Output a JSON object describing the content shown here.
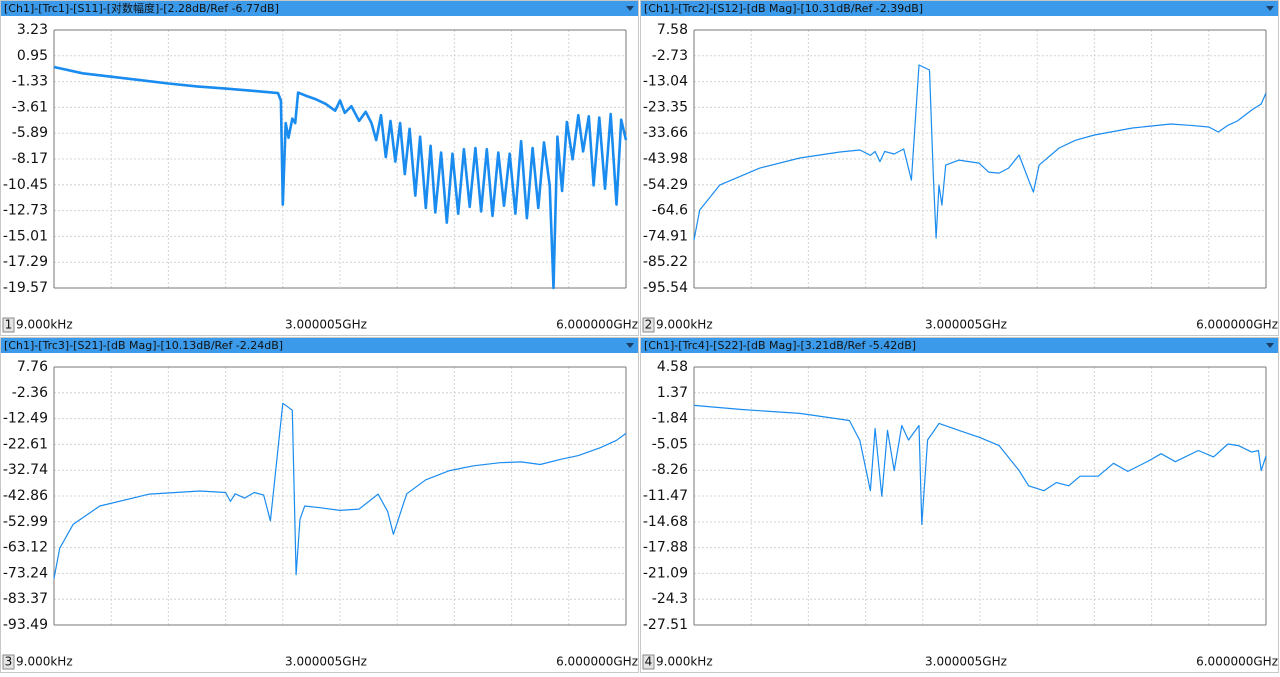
{
  "chart_data": [
    {
      "type": "line",
      "title": "[Ch1]-[Trc1]-[S11]-[对数幅度]-[2.28dB/Ref -6.77dB]",
      "panel": "1",
      "color": "#1a8cf0",
      "width": 2.6,
      "xlim": [
        9e-06,
        6
      ],
      "xticks": [
        {
          "value": 9e-06,
          "label": "9.000kHz"
        },
        {
          "value": 3.000005,
          "label": "3.000005GHz"
        },
        {
          "value": 6,
          "label": "6.000000GHz"
        }
      ],
      "ylim": [
        -19.57,
        3.23
      ],
      "yticks": [
        3.23,
        0.95,
        -1.33,
        -3.61,
        -5.89,
        -8.17,
        -10.45,
        -12.73,
        -15.01,
        -17.29,
        -19.57
      ],
      "grid": true,
      "x": [
        9e-06,
        0.3,
        0.6,
        0.9,
        1.2,
        1.5,
        1.8,
        2.1,
        2.35,
        2.38,
        2.4,
        2.43,
        2.46,
        2.5,
        2.53,
        2.56,
        2.65,
        2.75,
        2.85,
        2.95,
        3.0,
        3.05,
        3.12,
        3.2,
        3.27,
        3.33,
        3.38,
        3.43,
        3.48,
        3.53,
        3.58,
        3.63,
        3.68,
        3.73,
        3.79,
        3.84,
        3.9,
        3.95,
        4.0,
        4.06,
        4.12,
        4.18,
        4.24,
        4.3,
        4.36,
        4.42,
        4.48,
        4.54,
        4.6,
        4.66,
        4.72,
        4.78,
        4.84,
        4.9,
        4.96,
        5.02,
        5.08,
        5.14,
        5.2,
        5.24,
        5.28,
        5.33,
        5.38,
        5.44,
        5.5,
        5.55,
        5.61,
        5.66,
        5.72,
        5.78,
        5.84,
        5.9,
        5.95,
        6.0
      ],
      "values": [
        -0.04,
        -0.6,
        -0.9,
        -1.2,
        -1.5,
        -1.75,
        -1.95,
        -2.15,
        -2.35,
        -3.0,
        -12.2,
        -5.0,
        -6.3,
        -4.6,
        -5.0,
        -2.3,
        -2.6,
        -2.9,
        -3.3,
        -3.9,
        -3.0,
        -4.1,
        -3.5,
        -4.8,
        -4.0,
        -5.0,
        -6.5,
        -4.3,
        -8.0,
        -4.8,
        -8.4,
        -5.0,
        -9.5,
        -5.5,
        -11.4,
        -6.2,
        -12.5,
        -7.0,
        -12.9,
        -7.6,
        -13.8,
        -7.7,
        -13.0,
        -7.3,
        -12.4,
        -7.2,
        -12.8,
        -7.3,
        -13.2,
        -7.6,
        -12.3,
        -7.7,
        -13.0,
        -6.6,
        -13.4,
        -7.2,
        -12.5,
        -6.7,
        -10.5,
        -19.57,
        -6.2,
        -11.0,
        -4.9,
        -8.2,
        -4.3,
        -7.5,
        -4.4,
        -10.5,
        -4.5,
        -10.8,
        -4.2,
        -12.2,
        -4.7,
        -6.5
      ]
    },
    {
      "type": "line",
      "title": "[Ch1]-[Trc2]-[S12]-[dB Mag]-[10.31dB/Ref -2.39dB]",
      "panel": "2",
      "color": "#1a8cf0",
      "width": 1.2,
      "xlim": [
        9e-06,
        6
      ],
      "xticks": [
        {
          "value": 9e-06,
          "label": "9.000kHz"
        },
        {
          "value": 3.000005,
          "label": "3.000005GHz"
        },
        {
          "value": 6,
          "label": "6.000000GHz"
        }
      ],
      "ylim": [
        -95.54,
        7.58
      ],
      "yticks": [
        7.58,
        -2.73,
        -13.04,
        -23.35,
        -33.66,
        -43.98,
        -54.29,
        -64.6,
        -74.91,
        -85.22,
        -95.54
      ],
      "grid": true,
      "x": [
        9e-06,
        0.06,
        0.27,
        0.69,
        1.11,
        1.53,
        1.74,
        1.85,
        1.9,
        1.95,
        2.0,
        2.1,
        2.2,
        2.28,
        2.36,
        2.47,
        2.51,
        2.54,
        2.57,
        2.6,
        2.64,
        2.78,
        2.99,
        3.09,
        3.2,
        3.3,
        3.41,
        3.51,
        3.56,
        3.62,
        3.83,
        4.0,
        4.2,
        4.4,
        4.6,
        4.8,
        5.0,
        5.2,
        5.4,
        5.5,
        5.6,
        5.7,
        5.85,
        5.95,
        6.0
      ],
      "values": [
        -76.3,
        -64.4,
        -54.4,
        -47.6,
        -43.6,
        -41.2,
        -40.4,
        -42.5,
        -41.0,
        -45.0,
        -41.0,
        -42.0,
        -40.0,
        -52.4,
        -6.4,
        -8.4,
        -50.4,
        -75.6,
        -54.4,
        -62.4,
        -46.4,
        -44.4,
        -45.6,
        -49.2,
        -49.6,
        -47.6,
        -42.4,
        -52.4,
        -57.2,
        -46.4,
        -39.6,
        -36.5,
        -34.4,
        -33.0,
        -31.6,
        -30.8,
        -30.0,
        -30.5,
        -31.2,
        -33.2,
        -30.5,
        -28.8,
        -24.4,
        -22.0,
        -17.6
      ]
    },
    {
      "type": "line",
      "title": "[Ch1]-[Trc3]-[S21]-[dB Mag]-[10.13dB/Ref -2.24dB]",
      "panel": "3",
      "color": "#1a8cf0",
      "width": 1.2,
      "xlim": [
        9e-06,
        6
      ],
      "xticks": [
        {
          "value": 9e-06,
          "label": "9.000kHz"
        },
        {
          "value": 3.000005,
          "label": "3.000005GHz"
        },
        {
          "value": 6,
          "label": "6.000000GHz"
        }
      ],
      "ylim": [
        -93.49,
        7.76
      ],
      "yticks": [
        7.76,
        -2.36,
        -12.49,
        -22.61,
        -32.74,
        -42.86,
        -52.99,
        -63.12,
        -73.24,
        -83.37,
        -93.49
      ],
      "grid": true,
      "x": [
        9e-06,
        0.06,
        0.2,
        0.48,
        1.0,
        1.53,
        1.8,
        1.85,
        1.9,
        2.0,
        2.1,
        2.2,
        2.27,
        2.4,
        2.5,
        2.54,
        2.58,
        2.63,
        2.8,
        3.0,
        3.2,
        3.4,
        3.5,
        3.56,
        3.7,
        3.9,
        4.15,
        4.4,
        4.68,
        4.9,
        5.1,
        5.31,
        5.5,
        5.73,
        5.9,
        6.0
      ],
      "values": [
        -75.2,
        -63.4,
        -54.0,
        -46.8,
        -42.1,
        -40.9,
        -41.5,
        -45.0,
        -42.0,
        -43.7,
        -41.5,
        -42.5,
        -52.6,
        -6.5,
        -9.2,
        -73.7,
        -52.0,
        -46.8,
        -47.5,
        -48.5,
        -48.0,
        -42.1,
        -49.0,
        -57.9,
        -42.0,
        -36.5,
        -32.9,
        -31.0,
        -29.8,
        -29.5,
        -30.5,
        -28.5,
        -27.0,
        -23.9,
        -21.0,
        -18.3
      ]
    },
    {
      "type": "line",
      "title": "[Ch1]-[Trc4]-[S22]-[dB Mag]-[3.21dB/Ref -5.42dB]",
      "panel": "4",
      "color": "#1a8cf0",
      "width": 1.2,
      "xlim": [
        9e-06,
        6
      ],
      "xticks": [
        {
          "value": 9e-06,
          "label": "9.000kHz"
        },
        {
          "value": 3.000005,
          "label": "3.000005GHz"
        },
        {
          "value": 6,
          "label": "6.000000GHz"
        }
      ],
      "ylim": [
        -27.51,
        4.58
      ],
      "yticks": [
        4.58,
        1.37,
        -1.84,
        -5.05,
        -8.26,
        -11.47,
        -14.68,
        -17.88,
        -21.09,
        -24.3,
        -27.51
      ],
      "grid": true,
      "x": [
        9e-06,
        0.5,
        1.11,
        1.63,
        1.74,
        1.85,
        1.9,
        1.97,
        2.03,
        2.1,
        2.18,
        2.25,
        2.36,
        2.39,
        2.45,
        2.52,
        2.57,
        2.78,
        3.0,
        3.2,
        3.41,
        3.51,
        3.67,
        3.8,
        3.93,
        4.05,
        4.24,
        4.4,
        4.55,
        4.77,
        4.9,
        5.05,
        5.29,
        5.45,
        5.6,
        5.71,
        5.85,
        5.92,
        5.95,
        6.0
      ],
      "values": [
        -0.19,
        -0.7,
        -1.19,
        -2.07,
        -4.57,
        -10.8,
        -3.07,
        -11.5,
        -3.3,
        -8.3,
        -2.7,
        -4.5,
        -2.7,
        -15.0,
        -4.5,
        -3.32,
        -2.44,
        -3.3,
        -4.2,
        -5.2,
        -8.3,
        -10.2,
        -10.8,
        -9.8,
        -10.2,
        -9.0,
        -9.0,
        -7.4,
        -8.4,
        -7.1,
        -6.2,
        -7.2,
        -5.8,
        -6.6,
        -5.0,
        -5.2,
        -6.0,
        -5.8,
        -8.3,
        -6.5
      ]
    }
  ]
}
